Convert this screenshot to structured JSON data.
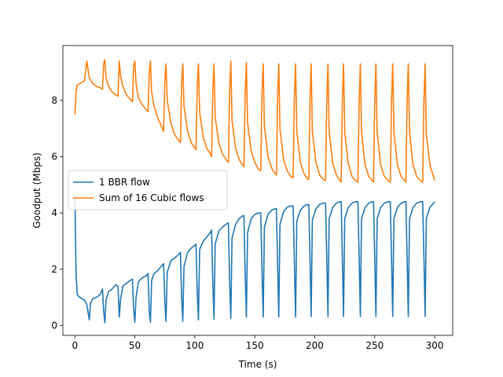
{
  "chart_data": {
    "type": "line",
    "title": "",
    "xlabel": "Time (s)",
    "ylabel": "Goodput (Mbps)",
    "xlim": [
      -10,
      315
    ],
    "ylim": [
      -0.35,
      9.95
    ],
    "xticks": [
      0,
      50,
      100,
      150,
      200,
      250,
      300
    ],
    "yticks": [
      0,
      2,
      4,
      6,
      8
    ],
    "xtick_labels": [
      "0",
      "50",
      "100",
      "150",
      "200",
      "250",
      "300"
    ],
    "ytick_labels": [
      "0",
      "2",
      "4",
      "6",
      "8"
    ],
    "grid": false,
    "legend_position": "center-left",
    "series": [
      {
        "name": "1 BBR flow",
        "color": "#1f77b4",
        "points": [
          [
            0,
            4.6
          ],
          [
            1,
            1.8
          ],
          [
            2,
            1.1
          ],
          [
            4,
            1.0
          ],
          [
            6,
            0.95
          ],
          [
            8,
            0.9
          ],
          [
            10,
            0.75
          ],
          [
            12,
            0.2
          ],
          [
            13,
            0.8
          ],
          [
            15,
            0.95
          ],
          [
            18,
            1.0
          ],
          [
            21,
            1.1
          ],
          [
            23,
            1.3
          ],
          [
            24,
            0.5
          ],
          [
            25,
            0.1
          ],
          [
            26,
            0.9
          ],
          [
            28,
            1.2
          ],
          [
            31,
            1.3
          ],
          [
            34,
            1.45
          ],
          [
            36,
            1.4
          ],
          [
            37,
            0.3
          ],
          [
            38,
            0.9
          ],
          [
            40,
            1.4
          ],
          [
            43,
            1.5
          ],
          [
            46,
            1.6
          ],
          [
            48,
            1.65
          ],
          [
            49,
            0.6
          ],
          [
            50,
            0.12
          ],
          [
            51,
            1.0
          ],
          [
            53,
            1.55
          ],
          [
            56,
            1.7
          ],
          [
            59,
            1.75
          ],
          [
            61,
            1.85
          ],
          [
            62,
            0.5
          ],
          [
            63,
            0.12
          ],
          [
            64,
            1.6
          ],
          [
            66,
            1.85
          ],
          [
            69,
            1.95
          ],
          [
            72,
            2.1
          ],
          [
            74,
            2.2
          ],
          [
            75,
            0.9
          ],
          [
            76,
            0.15
          ],
          [
            77,
            1.9
          ],
          [
            80,
            2.3
          ],
          [
            83,
            2.4
          ],
          [
            86,
            2.5
          ],
          [
            88,
            2.6
          ],
          [
            89,
            1.0
          ],
          [
            90,
            0.15
          ],
          [
            91,
            2.1
          ],
          [
            94,
            2.6
          ],
          [
            97,
            2.75
          ],
          [
            100,
            2.85
          ],
          [
            101,
            2.9
          ],
          [
            102,
            1.2
          ],
          [
            103,
            0.2
          ],
          [
            104,
            2.7
          ],
          [
            107,
            3.0
          ],
          [
            110,
            3.15
          ],
          [
            113,
            3.3
          ],
          [
            114,
            3.4
          ],
          [
            115,
            1.5
          ],
          [
            116,
            0.22
          ],
          [
            117,
            2.9
          ],
          [
            120,
            3.35
          ],
          [
            123,
            3.5
          ],
          [
            126,
            3.6
          ],
          [
            128,
            3.65
          ],
          [
            129,
            1.6
          ],
          [
            130,
            0.25
          ],
          [
            131,
            3.1
          ],
          [
            134,
            3.6
          ],
          [
            137,
            3.8
          ],
          [
            140,
            3.9
          ],
          [
            141,
            3.9
          ],
          [
            142,
            1.8
          ],
          [
            143,
            0.3
          ],
          [
            144,
            3.3
          ],
          [
            147,
            3.8
          ],
          [
            150,
            3.95
          ],
          [
            153,
            4.0
          ],
          [
            155,
            4.0
          ],
          [
            156,
            2.0
          ],
          [
            157,
            0.3
          ],
          [
            158,
            3.5
          ],
          [
            161,
            3.95
          ],
          [
            164,
            4.1
          ],
          [
            167,
            4.15
          ],
          [
            168,
            4.15
          ],
          [
            169,
            2.2
          ],
          [
            170,
            0.3
          ],
          [
            171,
            3.6
          ],
          [
            174,
            4.05
          ],
          [
            177,
            4.2
          ],
          [
            180,
            4.25
          ],
          [
            182,
            4.25
          ],
          [
            183,
            2.3
          ],
          [
            184,
            0.3
          ],
          [
            185,
            3.7
          ],
          [
            188,
            4.1
          ],
          [
            191,
            4.25
          ],
          [
            194,
            4.3
          ],
          [
            195,
            4.3
          ],
          [
            196,
            2.4
          ],
          [
            197,
            0.32
          ],
          [
            198,
            3.75
          ],
          [
            201,
            4.15
          ],
          [
            204,
            4.3
          ],
          [
            207,
            4.35
          ],
          [
            209,
            4.35
          ],
          [
            210,
            2.4
          ],
          [
            211,
            0.32
          ],
          [
            212,
            3.8
          ],
          [
            215,
            4.2
          ],
          [
            218,
            4.35
          ],
          [
            221,
            4.4
          ],
          [
            222,
            4.4
          ],
          [
            223,
            2.4
          ],
          [
            224,
            0.32
          ],
          [
            225,
            3.8
          ],
          [
            228,
            4.2
          ],
          [
            231,
            4.35
          ],
          [
            234,
            4.4
          ],
          [
            236,
            4.4
          ],
          [
            237,
            2.4
          ],
          [
            238,
            0.32
          ],
          [
            239,
            3.8
          ],
          [
            242,
            4.2
          ],
          [
            245,
            4.35
          ],
          [
            248,
            4.4
          ],
          [
            249,
            4.4
          ],
          [
            250,
            2.4
          ],
          [
            251,
            0.32
          ],
          [
            252,
            3.8
          ],
          [
            255,
            4.2
          ],
          [
            258,
            4.35
          ],
          [
            261,
            4.4
          ],
          [
            263,
            4.4
          ],
          [
            264,
            2.4
          ],
          [
            265,
            0.32
          ],
          [
            266,
            3.8
          ],
          [
            269,
            4.2
          ],
          [
            272,
            4.35
          ],
          [
            275,
            4.4
          ],
          [
            276,
            4.4
          ],
          [
            277,
            2.4
          ],
          [
            278,
            0.32
          ],
          [
            279,
            3.8
          ],
          [
            282,
            4.2
          ],
          [
            285,
            4.35
          ],
          [
            288,
            4.4
          ],
          [
            290,
            4.4
          ],
          [
            291,
            2.4
          ],
          [
            292,
            0.32
          ],
          [
            293,
            3.8
          ],
          [
            296,
            4.2
          ],
          [
            299,
            4.35
          ],
          [
            300,
            4.4
          ]
        ]
      },
      {
        "name": "Sum of 16 Cubic flows",
        "color": "#ff7f0e",
        "points": [
          [
            0,
            7.5
          ],
          [
            1,
            8.3
          ],
          [
            2,
            8.55
          ],
          [
            4,
            8.6
          ],
          [
            6,
            8.65
          ],
          [
            8,
            8.7
          ],
          [
            10,
            9.4
          ],
          [
            11,
            9.1
          ],
          [
            12,
            8.8
          ],
          [
            15,
            8.6
          ],
          [
            18,
            8.5
          ],
          [
            21,
            8.45
          ],
          [
            23,
            8.4
          ],
          [
            24,
            9.3
          ],
          [
            25,
            9.45
          ],
          [
            26,
            8.8
          ],
          [
            28,
            8.5
          ],
          [
            31,
            8.3
          ],
          [
            34,
            8.2
          ],
          [
            36,
            8.15
          ],
          [
            37,
            9.4
          ],
          [
            38,
            8.9
          ],
          [
            40,
            8.5
          ],
          [
            43,
            8.2
          ],
          [
            46,
            8.05
          ],
          [
            48,
            7.95
          ],
          [
            49,
            9.2
          ],
          [
            50,
            9.4
          ],
          [
            51,
            8.6
          ],
          [
            53,
            8.1
          ],
          [
            56,
            7.85
          ],
          [
            59,
            7.7
          ],
          [
            61,
            7.6
          ],
          [
            62,
            9.0
          ],
          [
            63,
            9.4
          ],
          [
            64,
            8.3
          ],
          [
            66,
            7.8
          ],
          [
            69,
            7.4
          ],
          [
            72,
            7.1
          ],
          [
            74,
            6.9
          ],
          [
            75,
            8.7
          ],
          [
            76,
            9.3
          ],
          [
            77,
            8.0
          ],
          [
            80,
            7.2
          ],
          [
            83,
            6.8
          ],
          [
            86,
            6.6
          ],
          [
            88,
            6.5
          ],
          [
            89,
            8.6
          ],
          [
            90,
            9.3
          ],
          [
            91,
            7.8
          ],
          [
            94,
            6.9
          ],
          [
            97,
            6.5
          ],
          [
            100,
            6.3
          ],
          [
            101,
            6.25
          ],
          [
            102,
            8.5
          ],
          [
            103,
            9.3
          ],
          [
            104,
            7.6
          ],
          [
            107,
            6.7
          ],
          [
            110,
            6.3
          ],
          [
            113,
            6.1
          ],
          [
            114,
            6.0
          ],
          [
            115,
            8.4
          ],
          [
            116,
            9.3
          ],
          [
            117,
            7.4
          ],
          [
            120,
            6.5
          ],
          [
            123,
            6.1
          ],
          [
            126,
            5.9
          ],
          [
            128,
            5.8
          ],
          [
            129,
            8.3
          ],
          [
            130,
            9.4
          ],
          [
            131,
            7.3
          ],
          [
            134,
            6.3
          ],
          [
            137,
            5.9
          ],
          [
            140,
            5.7
          ],
          [
            141,
            5.65
          ],
          [
            142,
            8.3
          ],
          [
            143,
            9.35
          ],
          [
            144,
            7.2
          ],
          [
            147,
            6.2
          ],
          [
            150,
            5.8
          ],
          [
            153,
            5.55
          ],
          [
            155,
            5.5
          ],
          [
            156,
            8.2
          ],
          [
            157,
            9.3
          ],
          [
            158,
            7.1
          ],
          [
            161,
            6.0
          ],
          [
            164,
            5.6
          ],
          [
            167,
            5.4
          ],
          [
            168,
            5.35
          ],
          [
            169,
            8.1
          ],
          [
            170,
            9.3
          ],
          [
            171,
            7.0
          ],
          [
            174,
            5.9
          ],
          [
            177,
            5.5
          ],
          [
            180,
            5.3
          ],
          [
            182,
            5.25
          ],
          [
            183,
            8.1
          ],
          [
            184,
            9.3
          ],
          [
            185,
            6.9
          ],
          [
            188,
            5.8
          ],
          [
            191,
            5.4
          ],
          [
            194,
            5.2
          ],
          [
            195,
            5.2
          ],
          [
            196,
            8.0
          ],
          [
            197,
            9.3
          ],
          [
            198,
            6.9
          ],
          [
            201,
            5.8
          ],
          [
            204,
            5.35
          ],
          [
            207,
            5.2
          ],
          [
            209,
            5.15
          ],
          [
            210,
            8.0
          ],
          [
            211,
            9.3
          ],
          [
            212,
            6.9
          ],
          [
            215,
            5.75
          ],
          [
            218,
            5.35
          ],
          [
            221,
            5.15
          ],
          [
            222,
            5.1
          ],
          [
            223,
            8.0
          ],
          [
            224,
            9.3
          ],
          [
            225,
            6.85
          ],
          [
            228,
            5.75
          ],
          [
            231,
            5.3
          ],
          [
            234,
            5.15
          ],
          [
            236,
            5.1
          ],
          [
            237,
            8.0
          ],
          [
            238,
            9.3
          ],
          [
            239,
            6.85
          ],
          [
            242,
            5.7
          ],
          [
            245,
            5.3
          ],
          [
            248,
            5.15
          ],
          [
            249,
            5.1
          ],
          [
            250,
            8.0
          ],
          [
            251,
            9.3
          ],
          [
            252,
            6.85
          ],
          [
            255,
            5.7
          ],
          [
            258,
            5.3
          ],
          [
            261,
            5.15
          ],
          [
            263,
            5.1
          ],
          [
            264,
            8.0
          ],
          [
            265,
            9.3
          ],
          [
            266,
            6.85
          ],
          [
            269,
            5.7
          ],
          [
            272,
            5.3
          ],
          [
            275,
            5.15
          ],
          [
            276,
            5.1
          ],
          [
            277,
            8.0
          ],
          [
            278,
            9.3
          ],
          [
            279,
            6.85
          ],
          [
            282,
            5.7
          ],
          [
            285,
            5.3
          ],
          [
            288,
            5.15
          ],
          [
            290,
            5.1
          ],
          [
            291,
            8.0
          ],
          [
            292,
            9.3
          ],
          [
            293,
            6.85
          ],
          [
            296,
            5.7
          ],
          [
            299,
            5.3
          ],
          [
            300,
            5.15
          ]
        ]
      }
    ]
  }
}
